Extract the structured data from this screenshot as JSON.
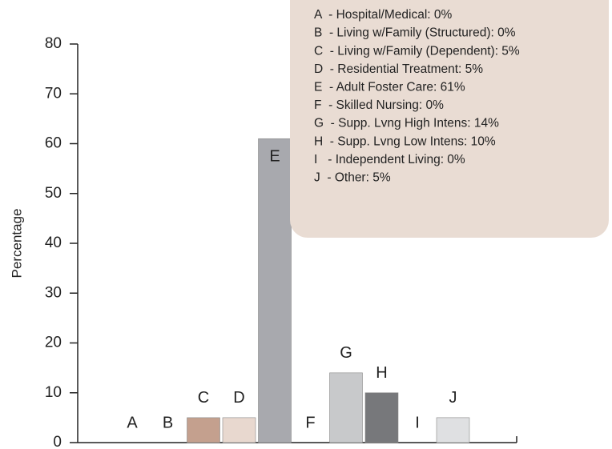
{
  "chart_data": {
    "type": "bar",
    "y_label": "Percentage",
    "categories": [
      "A",
      "B",
      "C",
      "D",
      "E",
      "F",
      "G",
      "H",
      "I",
      "J"
    ],
    "values": [
      0,
      0,
      5,
      5,
      61,
      0,
      14,
      10,
      0,
      5
    ],
    "colors": [
      "#a8a9ae",
      "#a8a9ae",
      "#c4a08e",
      "#e8d8cf",
      "#a8a9ae",
      "#a8a9ae",
      "#c8c9cb",
      "#77787b",
      "#a8a9ae",
      "#dfe0e2"
    ],
    "legend": [
      "A  - Hospital/Medical: 0%",
      "B  - Living w/Family (Structured): 0%",
      "C  - Living w/Family (Dependent): 5%",
      "D  - Residential Treatment: 5%",
      "E  - Adult Foster Care: 61%",
      "F  - Skilled Nursing: 0%",
      "G  - Supp. Lvng High Intens: 14%",
      "H  - Supp. Lvng Low Intens: 10%",
      "I   - Independent Living: 0%",
      "J  - Other: 5%"
    ],
    "legend_position": "upper right",
    "ylim": [
      0,
      80
    ],
    "yticks": [
      0,
      10,
      20,
      30,
      40,
      50,
      60,
      70,
      80
    ]
  }
}
